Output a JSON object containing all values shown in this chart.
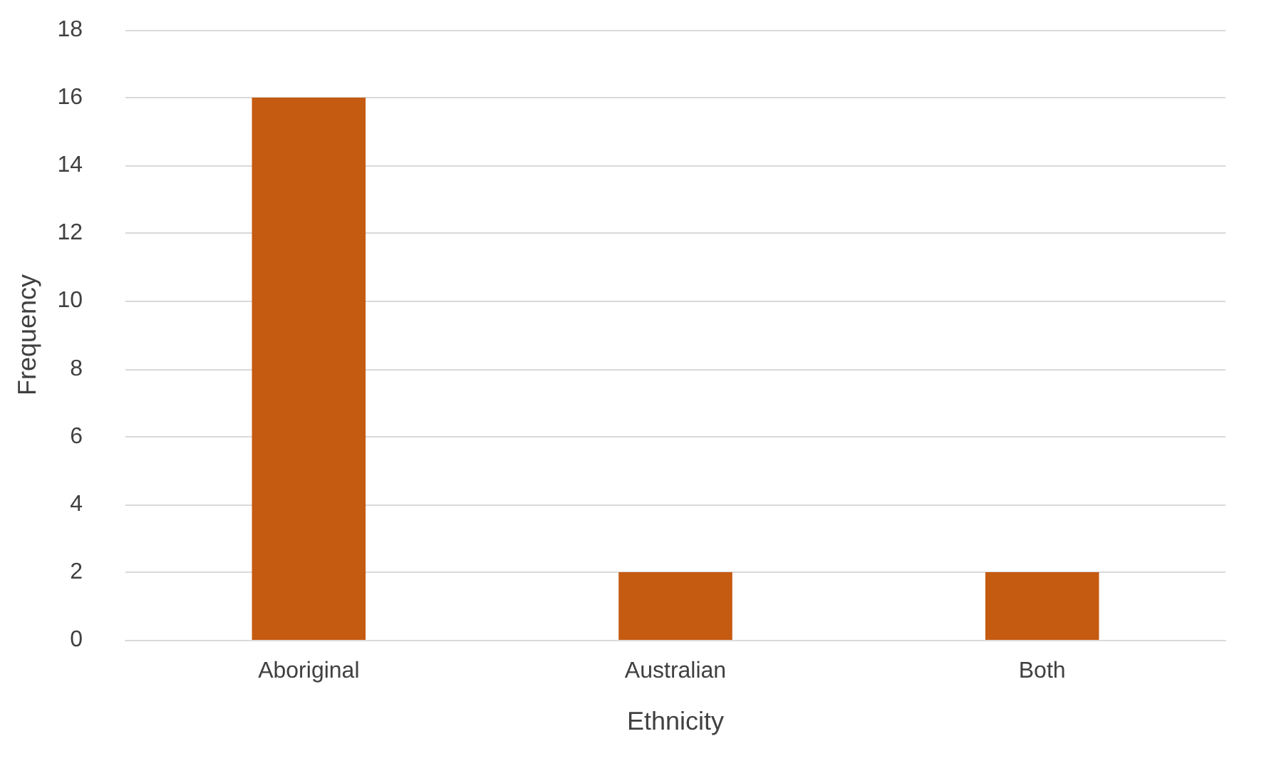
{
  "chart_data": {
    "type": "bar",
    "xlabel": "Ethnicity",
    "ylabel": "Frequency",
    "categories": [
      "Aboriginal",
      "Australian",
      "Both"
    ],
    "values": [
      16,
      2,
      2
    ],
    "color": "#c55a11",
    "ylim": [
      0,
      18
    ],
    "yticks": [
      0,
      2,
      4,
      6,
      8,
      10,
      12,
      14,
      16,
      18
    ],
    "grid": "y",
    "legend": false
  }
}
